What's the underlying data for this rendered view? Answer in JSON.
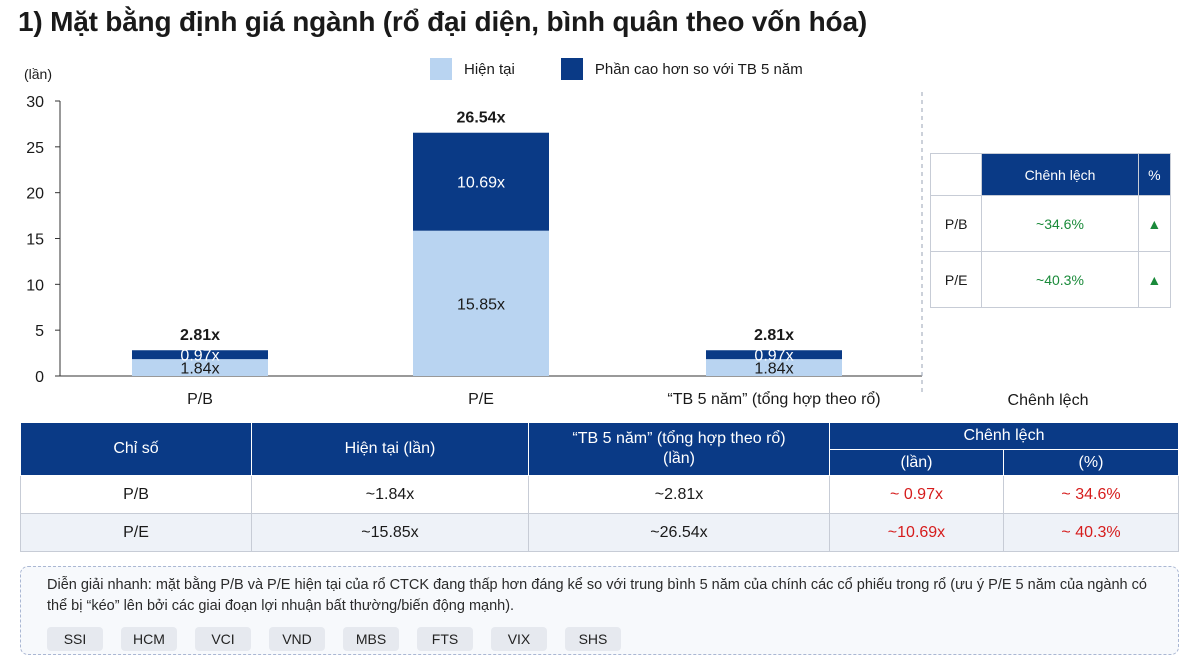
{
  "title": "1) Mặt bằng định giá ngành (rổ đại diện, bình quân theo vốn hóa)",
  "legend": {
    "current": "Hiện tại",
    "excess": "Phần cao hơn so với TB 5 năm"
  },
  "colors": {
    "current": "#b9d4f1",
    "excess": "#0a3a86",
    "positive": "#1a8a3a",
    "negative": "#d61c1c"
  },
  "chart_data": {
    "type": "bar",
    "stacked": true,
    "ylabel": "(lần)",
    "ylim": [
      0,
      30
    ],
    "yticks": [
      "0",
      "5",
      "10",
      "15",
      "20",
      "25",
      "30"
    ],
    "categories": [
      "P/B",
      "P/E",
      "“TB 5 năm” (tổng hợp theo rổ)"
    ],
    "extra_category": "Chênh lệch",
    "series": [
      {
        "name": "Hiện tại",
        "values": [
          1.84,
          15.85,
          1.84
        ],
        "labels": [
          "1.84x",
          "15.85x",
          "1.84x"
        ]
      },
      {
        "name": "Phần cao hơn so với TB 5 năm",
        "values": [
          0.97,
          10.69,
          0.97
        ],
        "labels": [
          "0.97x",
          "10.69x",
          "0.97x"
        ]
      }
    ],
    "totals": [
      "2.81x",
      "26.54x",
      "2.81x"
    ],
    "grid": false,
    "legend_position": "top"
  },
  "mini_table": {
    "headers": [
      "",
      "Chênh lệch",
      "%"
    ],
    "rows": [
      {
        "label": "P/B",
        "value": "~34.6%",
        "icon": "triangle-up-icon"
      },
      {
        "label": "P/E",
        "value": "~40.3%",
        "icon": "triangle-up-icon"
      }
    ]
  },
  "table": {
    "headers": {
      "metric": "Chỉ số",
      "current": "Hiện tại (lần)",
      "avg_line1": "“TB 5 năm” (tổng hợp theo rổ)",
      "avg_line2": "(lần)",
      "diff": "Chênh lệch",
      "diff_abs": "(lần)",
      "diff_pct": "(%)"
    },
    "rows": [
      {
        "metric": "P/B",
        "current": "~1.84x",
        "avg": "~2.81x",
        "diff_abs": "~ 0.97x",
        "diff_pct": "~ 34.6%"
      },
      {
        "metric": "P/E",
        "current": "~15.85x",
        "avg": "~26.54x",
        "diff_abs": "~10.69x",
        "diff_pct": "~ 40.3%"
      }
    ]
  },
  "note": {
    "text": "Diễn giải nhanh: mặt bằng P/B và P/E hiện tại của rổ CTCK đang thấp hơn đáng kể so với trung bình 5 năm của chính các cổ phiếu trong rổ (ưu ý P/E 5 năm của ngành có thể bị “kéo” lên bởi các giai đoạn lợi nhuận bất thường/biến động mạnh).",
    "tags": [
      "SSI",
      "HCM",
      "VCI",
      "VND",
      "MBS",
      "FTS",
      "VIX",
      "SHS"
    ]
  }
}
